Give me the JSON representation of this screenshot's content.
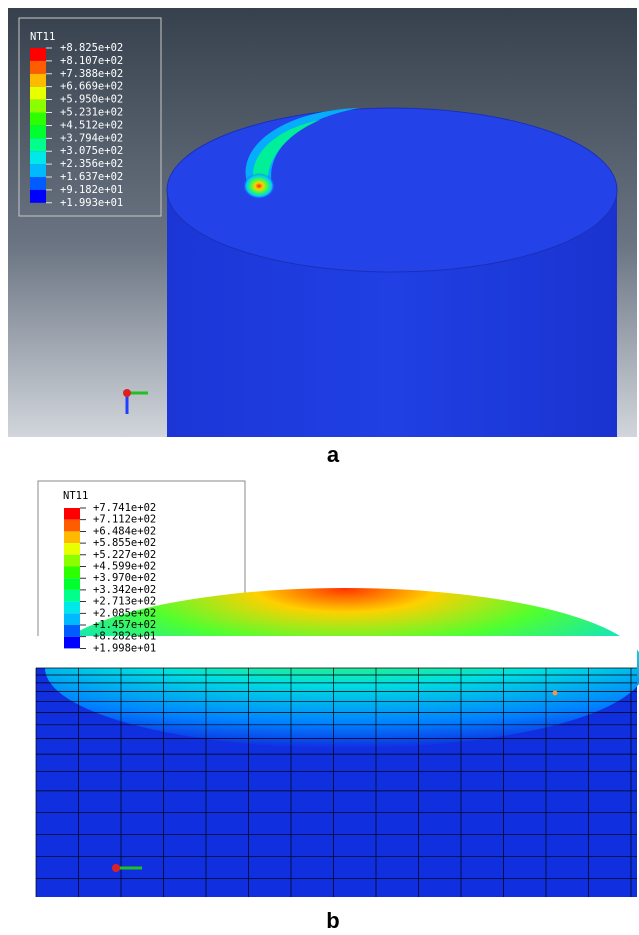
{
  "panels": [
    {
      "label": "a",
      "legend": {
        "title": "NT11",
        "values": [
          "+8.825e+02",
          "+8.107e+02",
          "+7.388e+02",
          "+6.669e+02",
          "+5.950e+02",
          "+5.231e+02",
          "+4.512e+02",
          "+3.794e+02",
          "+3.075e+02",
          "+2.356e+02",
          "+1.637e+02",
          "+9.182e+01",
          "+1.993e+01"
        ]
      }
    },
    {
      "label": "b",
      "legend": {
        "title": "NT11",
        "values": [
          "+7.741e+02",
          "+7.112e+02",
          "+6.484e+02",
          "+5.855e+02",
          "+5.227e+02",
          "+4.599e+02",
          "+3.970e+02",
          "+3.342e+02",
          "+2.713e+02",
          "+2.085e+02",
          "+1.457e+02",
          "+8.282e+01",
          "+1.998e+01"
        ]
      }
    }
  ]
}
